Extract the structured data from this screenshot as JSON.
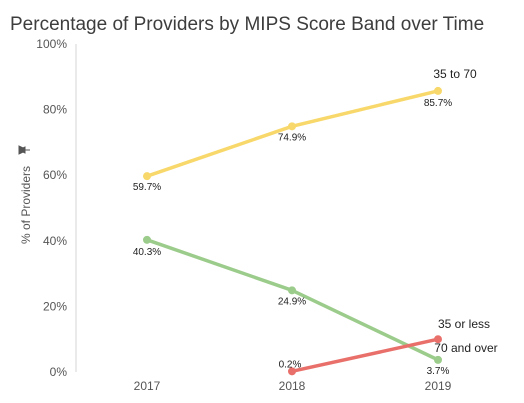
{
  "chart_data": {
    "type": "line",
    "title": "Percentage of Providers by MIPS Score Band over Time",
    "ylabel": "% of Providers",
    "xlabel": "",
    "categories": [
      "2017",
      "2018",
      "2019"
    ],
    "y_ticks": [
      "0%",
      "20%",
      "40%",
      "60%",
      "80%",
      "100%"
    ],
    "ylim": [
      0,
      100
    ],
    "grid": false,
    "series": [
      {
        "name": "35 to 70",
        "color": "#f8d86a",
        "values": [
          59.7,
          74.9,
          85.7
        ],
        "data_labels": [
          "59.7%",
          "74.9%",
          "85.7%"
        ]
      },
      {
        "name": "70 and over",
        "color": "#9ccc8b",
        "values": [
          40.3,
          24.9,
          3.7
        ],
        "data_labels": [
          "40.3%",
          "24.9%",
          "3.7%"
        ]
      },
      {
        "name": "35 or less",
        "color": "#e9706a",
        "values": [
          null,
          0.2,
          10.0
        ],
        "data_labels": [
          null,
          "0.2%",
          null
        ]
      }
    ]
  }
}
